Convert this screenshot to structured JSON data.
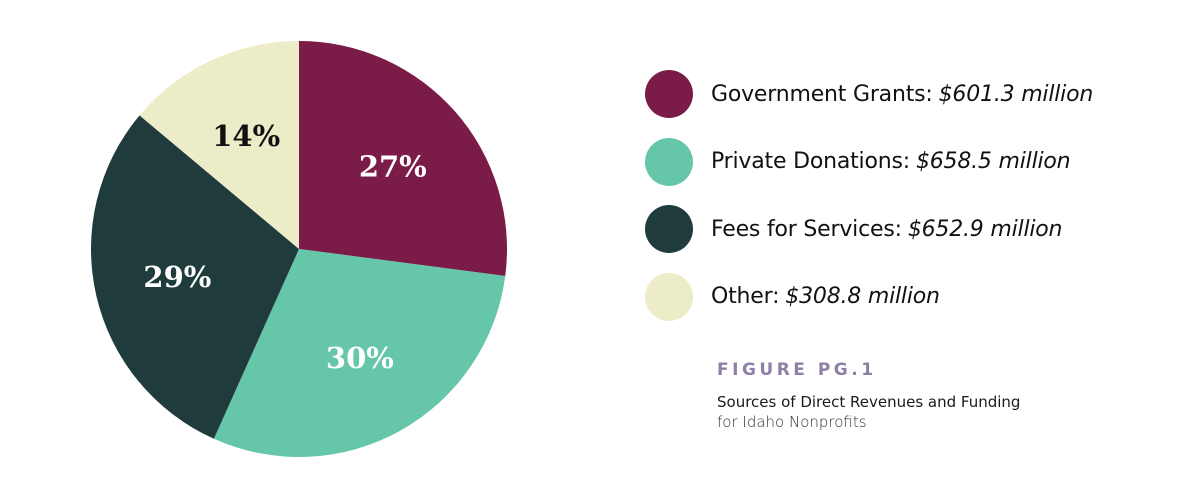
{
  "chart_data": {
    "type": "pie",
    "categories": [
      "Government Grants",
      "Private Donations",
      "Fees for Services",
      "Other"
    ],
    "values": [
      601.3,
      658.5,
      652.9,
      308.8
    ],
    "value_labels": [
      "$601.3 million",
      "$658.5 million",
      "$652.9 million",
      "$308.8 million"
    ],
    "percent_labels": [
      "27%",
      "30%",
      "29%",
      "14%"
    ],
    "colors": [
      "#7b1c48",
      "#66c6a9",
      "#1f3b3c",
      "#ececc9"
    ],
    "label_colors": [
      "#ffffff",
      "#ffffff",
      "#ffffff",
      "#111111"
    ],
    "legend_position": "right",
    "start_angle": "12 o'clock",
    "direction": "clockwise"
  },
  "legend": [
    {
      "name": "Government Grants:",
      "value": "$601.3 million",
      "color": "#7b1c48"
    },
    {
      "name": "Private Donations:",
      "value": "$658.5 million",
      "color": "#66c6a9"
    },
    {
      "name": "Fees for Services:",
      "value": "$652.9 million",
      "color": "#1f3b3c"
    },
    {
      "name": "Other:",
      "value": "$308.8 million",
      "color": "#ececc9"
    }
  ],
  "caption": {
    "figure_label": "FIGURE PG.1",
    "title": "Sources of Direct Revenues and Funding",
    "subtitle": "for Idaho Nonprofits"
  }
}
